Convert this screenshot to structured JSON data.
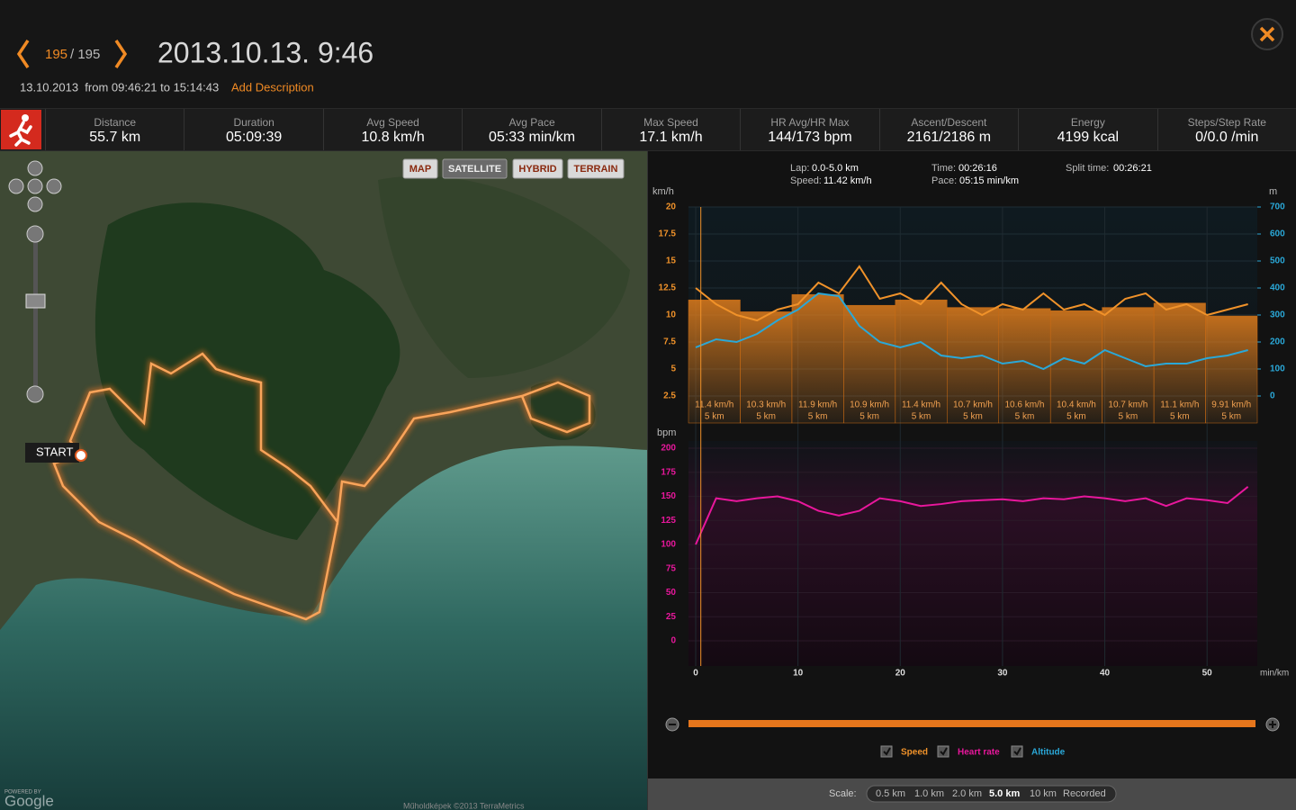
{
  "header": {
    "counter_current": "195",
    "counter_total": "/ 195",
    "title": "2013.10.13. 9:46",
    "subtitle": "13.10.2013  from 09:46:21 to 15:14:43",
    "add_description": "Add Description"
  },
  "stats": [
    {
      "label": "Distance",
      "value": "55.7 km"
    },
    {
      "label": "Duration",
      "value": "05:09:39"
    },
    {
      "label": "Avg Speed",
      "value": "10.8 km/h"
    },
    {
      "label": "Avg Pace",
      "value": "05:33 min/km"
    },
    {
      "label": "Max Speed",
      "value": "17.1 km/h"
    },
    {
      "label": "HR Avg/HR Max",
      "value": "144/173 bpm"
    },
    {
      "label": "Ascent/Descent",
      "value": "2161/2186 m"
    },
    {
      "label": "Energy",
      "value": "4199 kcal"
    },
    {
      "label": "Steps/Step Rate",
      "value": "0/0.0 /min"
    }
  ],
  "map": {
    "buttons": [
      "MAP",
      "SATELLITE",
      "HYBRID",
      "TERRAIN"
    ],
    "selected_button": 1,
    "start_label": "START",
    "powered_by": "POWERED BY",
    "google": "Google",
    "attribution": "Műholdképek ©2013 TerraMetrics"
  },
  "lap_info": {
    "lap_label": "Lap:",
    "lap_value": "0.0-5.0 km",
    "speed_label": "Speed:",
    "speed_value": "11.42 km/h",
    "time_label": "Time:",
    "time_value": "00:26:16",
    "pace_label": "Pace:",
    "pace_value": "05:15 min/km",
    "split_label": "Split time:",
    "split_value": "00:26:21"
  },
  "speed_chart": {
    "type": "line",
    "y_label": "km/h",
    "y2_label": "m",
    "x_label": "min/km",
    "xlim": [
      0,
      55
    ],
    "xticks": [
      0,
      10,
      20,
      30,
      40,
      50
    ],
    "ylim": [
      0,
      20
    ],
    "yticks": [
      2.5,
      5,
      7.5,
      10,
      12.5,
      15,
      17.5,
      20
    ],
    "y2lim": [
      -100,
      700
    ],
    "y2ticks": [
      0,
      100,
      200,
      300,
      400,
      500,
      600,
      700
    ],
    "cursor": 0.5,
    "x": [
      0,
      2,
      4,
      6,
      8,
      10,
      12,
      14,
      16,
      18,
      20,
      22,
      24,
      26,
      28,
      30,
      32,
      34,
      36,
      38,
      40,
      42,
      44,
      46,
      48,
      50,
      52,
      54
    ],
    "series": [
      {
        "name": "Speed",
        "color": "#f0922a",
        "values": [
          12.5,
          11,
          10,
          9.5,
          10.5,
          11,
          13,
          12,
          14.5,
          11.5,
          12,
          11,
          13,
          11,
          10,
          11,
          10.5,
          12,
          10.5,
          11,
          10,
          11.5,
          12,
          10.5,
          11,
          10,
          10.5,
          11
        ]
      },
      {
        "name": "Altitude",
        "color": "#2aa8d8",
        "axis": "y2",
        "values": [
          180,
          210,
          200,
          230,
          280,
          320,
          380,
          370,
          260,
          200,
          180,
          200,
          150,
          140,
          150,
          120,
          130,
          100,
          140,
          120,
          170,
          140,
          110,
          120,
          120,
          140,
          150,
          170
        ]
      }
    ],
    "laps": {
      "values": [
        11.4,
        10.3,
        11.9,
        10.9,
        11.4,
        10.7,
        10.6,
        10.4,
        10.7,
        11.1,
        9.91
      ],
      "value_labels": [
        "11.4 km/h",
        "10.3 km/h",
        "11.9 km/h",
        "10.9 km/h",
        "11.4 km/h",
        "10.7 km/h",
        "10.6 km/h",
        "10.4 km/h",
        "10.7 km/h",
        "11.1 km/h",
        "9.91 km/h"
      ],
      "distances": [
        5,
        5,
        5,
        5,
        5,
        5,
        5,
        5,
        5,
        5,
        5
      ],
      "distance_labels": [
        "5 km",
        "5 km",
        "5 km",
        "5 km",
        "5 km",
        "5 km",
        "5 km",
        "5 km",
        "5 km",
        "5 km",
        "5 km"
      ]
    }
  },
  "hr_chart": {
    "type": "line",
    "y_label": "bpm",
    "ylim": [
      0,
      200
    ],
    "yticks": [
      0,
      25,
      50,
      75,
      100,
      125,
      150,
      175,
      200
    ],
    "series": [
      {
        "name": "Heart rate",
        "color": "#e8179c",
        "values": [
          100,
          148,
          145,
          148,
          150,
          145,
          135,
          130,
          135,
          148,
          145,
          140,
          142,
          145,
          146,
          147,
          145,
          148,
          147,
          150,
          148,
          145,
          148,
          140,
          148,
          146,
          143,
          160
        ]
      }
    ]
  },
  "scale_bar": {
    "label": "Scale:",
    "options": [
      "0.5 km",
      "1.0 km",
      "2.0 km",
      "5.0 km",
      "10 km",
      "Recorded"
    ],
    "selected": 3
  }
}
